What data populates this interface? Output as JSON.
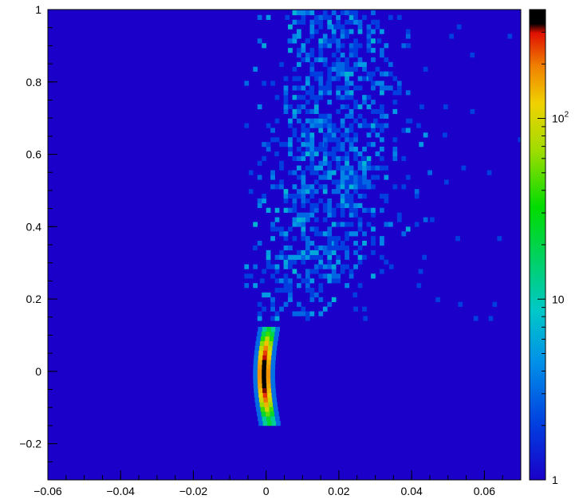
{
  "chart_data": {
    "type": "heatmap",
    "title": "",
    "xlabel": "",
    "ylabel": "",
    "xlim": [
      -0.06,
      0.07
    ],
    "ylim": [
      -0.3,
      1.0
    ],
    "x_ticks": [
      "-0.06",
      "-0.04",
      "-0.02",
      "0",
      "0.02",
      "0.04",
      "0.06"
    ],
    "y_ticks": [
      "-0.2",
      "0",
      "0.2",
      "0.4",
      "0.6",
      "0.8",
      "1"
    ],
    "x_tick_values": [
      -0.06,
      -0.04,
      -0.02,
      0,
      0.02,
      0.04,
      0.06
    ],
    "y_tick_values": [
      -0.2,
      0,
      0.2,
      0.4,
      0.6,
      0.8,
      1.0
    ],
    "colorbar": {
      "scale": "log",
      "range": [
        1,
        400
      ],
      "tick_labels": [
        {
          "value": 1,
          "base": "1",
          "exp": ""
        },
        {
          "value": 10,
          "base": "10",
          "exp": ""
        },
        {
          "value": 100,
          "base": "10",
          "exp": "2"
        }
      ]
    },
    "background_count": 1,
    "features": [
      {
        "name": "narrow band",
        "x_center": 0.0,
        "y_range": [
          -0.15,
          0.12
        ],
        "peak_count": 400
      },
      {
        "name": "broad plume",
        "x_range": [
          -0.005,
          0.052
        ],
        "y_range": [
          0.15,
          1.0
        ],
        "typical_count": 4
      }
    ]
  }
}
